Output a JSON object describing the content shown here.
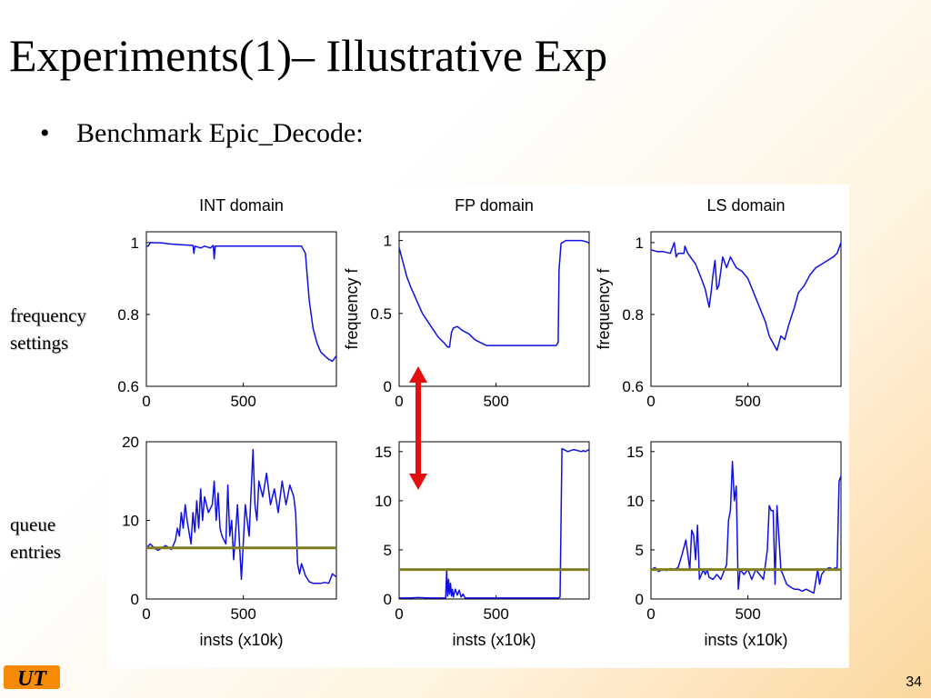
{
  "slide": {
    "title": "Experiments(1)– Illustrative Exp",
    "bullet": "Benchmark Epic_Decode:",
    "page_number": "34",
    "logo_text": "UT",
    "side_labels": {
      "frequency": [
        "frequency",
        "settings"
      ],
      "queue": [
        "queue",
        "entries"
      ]
    }
  },
  "colors": {
    "series": "#1010e0",
    "reference": "#7f7f20",
    "arrow": "#e31010"
  },
  "chart_data": [
    {
      "type": "line",
      "id": "int-freq",
      "title": "INT domain",
      "xlabel": "",
      "ylabel": "",
      "xlim": [
        0,
        980
      ],
      "ylim": [
        0.6,
        1.03
      ],
      "xticks": [
        0,
        500
      ],
      "yticks": [
        0.6,
        0.8,
        1
      ],
      "ytick_labels": [
        "0.6",
        "0.8",
        "1"
      ],
      "series": [
        {
          "x": [
            0,
            10,
            20,
            80,
            120,
            180,
            240,
            245,
            250,
            280,
            300,
            330,
            345,
            350,
            355,
            400,
            450,
            500,
            550,
            600,
            650,
            700,
            760,
            780,
            800,
            820,
            840,
            860,
            880,
            900,
            920,
            940,
            960,
            980
          ],
          "y": [
            0.99,
            0.99,
            1.0,
            0.999,
            0.996,
            0.994,
            0.992,
            0.97,
            0.99,
            0.985,
            0.99,
            0.985,
            0.992,
            0.955,
            0.99,
            0.99,
            0.99,
            0.99,
            0.99,
            0.99,
            0.99,
            0.99,
            0.99,
            0.99,
            0.99,
            0.97,
            0.84,
            0.76,
            0.72,
            0.695,
            0.685,
            0.675,
            0.67,
            0.685
          ]
        }
      ]
    },
    {
      "type": "line",
      "id": "fp-freq",
      "title": "FP   domain",
      "xlabel": "",
      "ylabel": "frequency f",
      "xlim": [
        0,
        980
      ],
      "ylim": [
        0,
        1.06
      ],
      "xticks": [
        0,
        500
      ],
      "yticks": [
        0,
        0.5,
        1
      ],
      "ytick_labels": [
        "0",
        "0.5",
        "1"
      ],
      "series": [
        {
          "x": [
            0,
            20,
            40,
            60,
            80,
            100,
            120,
            150,
            180,
            200,
            230,
            250,
            260,
            270,
            280,
            300,
            330,
            360,
            390,
            420,
            450,
            500,
            550,
            600,
            650,
            700,
            750,
            790,
            810,
            820,
            825,
            835,
            860,
            900,
            940,
            970,
            980
          ],
          "y": [
            0.95,
            0.85,
            0.75,
            0.68,
            0.62,
            0.56,
            0.5,
            0.44,
            0.38,
            0.34,
            0.3,
            0.27,
            0.27,
            0.37,
            0.4,
            0.41,
            0.38,
            0.36,
            0.32,
            0.3,
            0.28,
            0.28,
            0.28,
            0.28,
            0.28,
            0.28,
            0.28,
            0.28,
            0.28,
            0.3,
            0.8,
            0.98,
            1.0,
            1.0,
            1.0,
            0.99,
            0.98
          ]
        }
      ]
    },
    {
      "type": "line",
      "id": "ls-freq",
      "title": "LS   domain",
      "xlabel": "",
      "ylabel": "frequency f",
      "xlim": [
        0,
        980
      ],
      "ylim": [
        0.6,
        1.03
      ],
      "xticks": [
        0,
        500
      ],
      "yticks": [
        0.6,
        0.8,
        1
      ],
      "ytick_labels": [
        "0.6",
        "0.8",
        "1"
      ],
      "series": [
        {
          "x": [
            0,
            30,
            60,
            100,
            120,
            130,
            140,
            170,
            175,
            190,
            230,
            260,
            280,
            300,
            310,
            320,
            330,
            340,
            350,
            370,
            390,
            410,
            440,
            470,
            500,
            530,
            560,
            590,
            610,
            630,
            650,
            670,
            690,
            710,
            740,
            760,
            790,
            820,
            850,
            880,
            910,
            940,
            960,
            980
          ],
          "y": [
            0.98,
            0.975,
            0.975,
            0.97,
            1.0,
            0.96,
            0.97,
            0.97,
            0.99,
            0.97,
            0.94,
            0.9,
            0.87,
            0.82,
            0.86,
            0.91,
            0.95,
            0.87,
            0.88,
            0.96,
            0.93,
            0.96,
            0.93,
            0.92,
            0.9,
            0.86,
            0.82,
            0.78,
            0.74,
            0.72,
            0.7,
            0.74,
            0.73,
            0.77,
            0.82,
            0.86,
            0.88,
            0.91,
            0.93,
            0.94,
            0.95,
            0.96,
            0.97,
            1.0
          ]
        }
      ]
    },
    {
      "type": "line",
      "id": "int-queue",
      "title": "",
      "xlabel": "insts (x10k)",
      "ylabel": "",
      "xlim": [
        0,
        980
      ],
      "ylim": [
        0,
        20
      ],
      "xticks": [
        0,
        500
      ],
      "yticks": [
        0,
        10,
        20
      ],
      "ytick_labels": [
        "0",
        "10",
        "20"
      ],
      "reference": 6.5,
      "series": [
        {
          "x": [
            0,
            20,
            40,
            60,
            80,
            100,
            130,
            150,
            160,
            170,
            180,
            190,
            200,
            210,
            230,
            240,
            250,
            260,
            270,
            280,
            290,
            300,
            320,
            340,
            350,
            360,
            370,
            380,
            390,
            410,
            420,
            430,
            440,
            450,
            470,
            490,
            510,
            530,
            550,
            560,
            570,
            580,
            600,
            620,
            640,
            660,
            680,
            700,
            720,
            740,
            760,
            770,
            780,
            790,
            800,
            820,
            840,
            860,
            880,
            900,
            920,
            940,
            960,
            980
          ],
          "y": [
            6.5,
            7.0,
            6.5,
            6.2,
            6.5,
            6.8,
            6.3,
            7.5,
            9.0,
            8.0,
            11.0,
            9.0,
            12.0,
            10.0,
            7.0,
            11.0,
            8.5,
            12.5,
            9.0,
            14.0,
            10.0,
            13.0,
            11.0,
            12.0,
            15.0,
            10.0,
            13.5,
            9.0,
            8.0,
            7.0,
            14.5,
            8.0,
            10.0,
            5.0,
            12.0,
            2.5,
            12.0,
            8.0,
            19.0,
            12.0,
            10.0,
            15.0,
            13.0,
            16.0,
            12.0,
            14.0,
            11.0,
            15.0,
            12.0,
            14.5,
            13.0,
            11.0,
            4.5,
            3.2,
            4.5,
            3.0,
            2.2,
            2.0,
            2.0,
            2.0,
            2.1,
            2.0,
            3.2,
            2.8
          ]
        }
      ]
    },
    {
      "type": "line",
      "id": "fp-queue",
      "title": "",
      "xlabel": "insts (x10k)",
      "ylabel": "",
      "xlim": [
        0,
        980
      ],
      "ylim": [
        0,
        16
      ],
      "xticks": [
        0,
        500
      ],
      "yticks": [
        0,
        5,
        10,
        15
      ],
      "ytick_labels": [
        "0",
        "5",
        "10",
        "15"
      ],
      "reference": 3.0,
      "series": [
        {
          "x": [
            0,
            50,
            100,
            150,
            200,
            240,
            245,
            250,
            255,
            260,
            265,
            270,
            275,
            280,
            290,
            300,
            310,
            320,
            330,
            340,
            400,
            500,
            600,
            700,
            780,
            800,
            810,
            820,
            830,
            840,
            870,
            900,
            940,
            950,
            960,
            980
          ],
          "y": [
            0.1,
            0.1,
            0.15,
            0.1,
            0.1,
            0.1,
            3.0,
            0.3,
            2.0,
            0.5,
            1.6,
            0.3,
            1.0,
            0.2,
            1.0,
            0.4,
            0.9,
            0.2,
            0.5,
            0.1,
            0.1,
            0.1,
            0.1,
            0.1,
            0.1,
            0.1,
            0.1,
            0.1,
            0.2,
            15.3,
            15.0,
            15.2,
            15.0,
            15.1,
            15.0,
            15.2
          ]
        }
      ]
    },
    {
      "type": "line",
      "id": "ls-queue",
      "title": "",
      "xlabel": "insts (x10k)",
      "ylabel": "",
      "xlim": [
        0,
        980
      ],
      "ylim": [
        0,
        16
      ],
      "xticks": [
        0,
        500
      ],
      "yticks": [
        0,
        5,
        10,
        15
      ],
      "ytick_labels": [
        "0",
        "5",
        "10",
        "15"
      ],
      "reference": 3.0,
      "series": [
        {
          "x": [
            0,
            20,
            40,
            60,
            80,
            100,
            120,
            140,
            160,
            180,
            200,
            210,
            220,
            230,
            240,
            250,
            270,
            280,
            290,
            300,
            320,
            340,
            360,
            380,
            390,
            400,
            410,
            420,
            430,
            440,
            450,
            460,
            480,
            500,
            520,
            540,
            560,
            580,
            600,
            610,
            620,
            630,
            640,
            650,
            670,
            700,
            720,
            740,
            760,
            780,
            800,
            820,
            840,
            860,
            870,
            880,
            900,
            920,
            940,
            950,
            960,
            970,
            980
          ],
          "y": [
            3.0,
            3.2,
            2.8,
            3.0,
            2.9,
            3.1,
            3.0,
            3.2,
            4.5,
            6.0,
            3.0,
            7.0,
            6.5,
            4.0,
            7.5,
            2.0,
            3.0,
            2.5,
            3.0,
            2.2,
            2.0,
            2.5,
            2.0,
            3.0,
            3.5,
            8.0,
            9.0,
            14.0,
            10.0,
            11.5,
            1.0,
            3.0,
            2.5,
            3.0,
            2.0,
            3.0,
            2.5,
            2.0,
            5.0,
            9.5,
            9.0,
            9.0,
            1.5,
            9.5,
            3.0,
            1.5,
            1.2,
            1.0,
            1.0,
            0.8,
            1.0,
            0.8,
            0.6,
            3.0,
            1.5,
            2.5,
            3.0,
            3.2,
            3.0,
            3.2,
            3.0,
            12.0,
            12.5
          ]
        }
      ]
    }
  ]
}
